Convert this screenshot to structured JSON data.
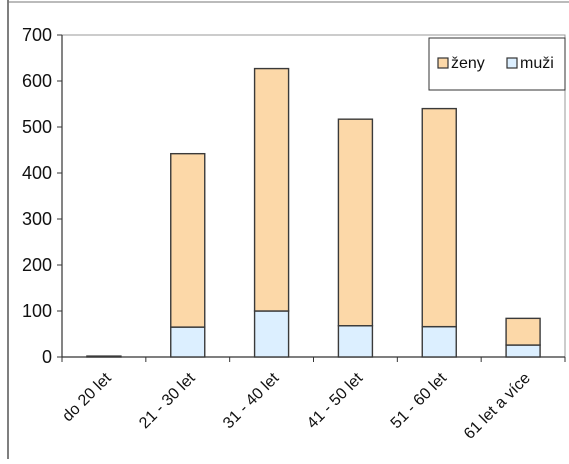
{
  "chart_data": {
    "type": "bar",
    "stacked": true,
    "categories": [
      "do 20 let",
      "21 - 30 let",
      "31 - 40 let",
      "41 - 50 let",
      "51 - 60 let",
      "61 let a více"
    ],
    "series": [
      {
        "name": "muži",
        "values": [
          2,
          65,
          100,
          68,
          66,
          26
        ],
        "color": "#dcefff"
      },
      {
        "name": "ženy",
        "values": [
          0,
          377,
          527,
          449,
          474,
          58
        ],
        "color": "#fcd8a8"
      }
    ],
    "legend_order": [
      "ženy",
      "muži"
    ],
    "legend_position": "top-right",
    "y_ticks": [
      "0",
      "100",
      "200",
      "300",
      "400",
      "500",
      "600",
      "700"
    ],
    "ylim": [
      0,
      700
    ],
    "grid": false,
    "bar_outline_color": "#3a3a3a"
  }
}
